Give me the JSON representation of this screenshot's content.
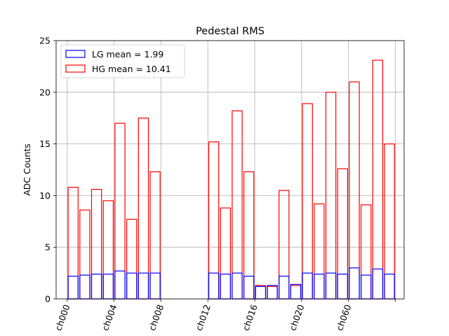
{
  "chart_data": {
    "type": "bar",
    "title": "Pedestal RMS",
    "xlabel": "",
    "ylabel": "ADC Counts",
    "ylim": [
      0,
      25
    ],
    "yticks": [
      0,
      5,
      10,
      15,
      20,
      25
    ],
    "grid": true,
    "legend_position": "top-left",
    "x_tick_labels": [
      "ch000",
      "ch004",
      "ch008",
      "ch012",
      "ch016",
      "ch020",
      "ch060"
    ],
    "x_tick_positions": [
      0,
      4,
      8,
      12,
      16,
      20,
      24
    ],
    "x_range": [
      -0.95,
      28.75
    ],
    "series": [
      {
        "name": "HG mean = 10.41",
        "color": "#ff0000",
        "values": [
          10.8,
          8.6,
          10.6,
          9.5,
          17.0,
          7.7,
          17.5,
          12.3,
          0,
          0,
          0,
          0,
          15.2,
          8.8,
          18.2,
          12.3,
          1.3,
          1.2,
          10.5,
          1.3,
          18.9,
          9.2,
          20.0,
          12.6,
          21.0,
          9.1,
          23.1,
          15.0
        ]
      },
      {
        "name": "LG mean = 1.99",
        "color": "#0000ff",
        "values": [
          2.2,
          2.3,
          2.4,
          2.4,
          2.7,
          2.5,
          2.5,
          2.5,
          0,
          0,
          0,
          0,
          2.5,
          2.4,
          2.5,
          2.2,
          1.2,
          1.3,
          2.2,
          1.4,
          2.5,
          2.4,
          2.5,
          2.4,
          3.0,
          2.3,
          2.9,
          2.4
        ]
      }
    ],
    "legend_order": [
      "LG mean = 1.99",
      "HG mean = 10.41"
    ]
  }
}
